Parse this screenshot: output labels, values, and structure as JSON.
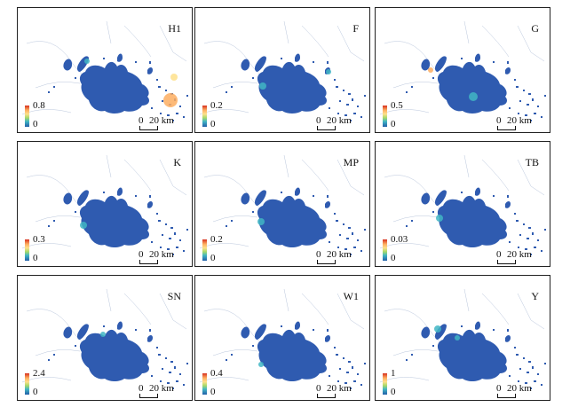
{
  "figure": {
    "scale_zero": "0",
    "scale_text": "20 km",
    "panels": [
      {
        "label": "H1",
        "max": "0.8",
        "min": "0"
      },
      {
        "label": "F",
        "max": "0.2",
        "min": "0"
      },
      {
        "label": "G",
        "max": "0.5",
        "min": "0"
      },
      {
        "label": "K",
        "max": "0.3",
        "min": "0"
      },
      {
        "label": "MP",
        "max": "0.2",
        "min": "0"
      },
      {
        "label": "TB",
        "max": "0.03",
        "min": "0"
      },
      {
        "label": "SN",
        "max": "2.4",
        "min": "0"
      },
      {
        "label": "W1",
        "max": "0.4",
        "min": "0"
      },
      {
        "label": "Y",
        "max": "1",
        "min": "0"
      }
    ],
    "colors": {
      "lake": "#2f5bb0",
      "ramp": [
        "#225ea8",
        "#41b6c4",
        "#a6d96a",
        "#fee08b",
        "#fdae61",
        "#d7301f"
      ],
      "frame": "#222222"
    }
  }
}
